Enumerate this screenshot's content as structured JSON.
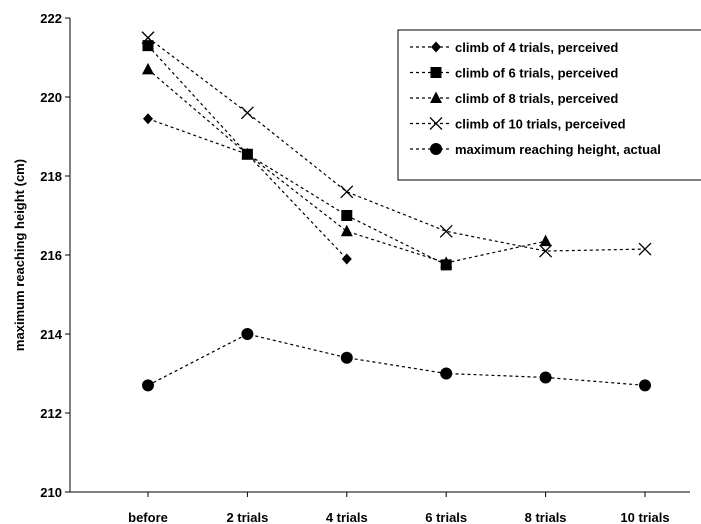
{
  "chart_data": {
    "type": "line",
    "title": "",
    "xlabel": "",
    "ylabel": "maximum reaching height (cm)",
    "categories": [
      "before",
      "2 trials",
      "4 trials",
      "6 trials",
      "8 trials",
      "10 trials"
    ],
    "ylim": [
      210,
      222
    ],
    "yticks": [
      210,
      212,
      214,
      216,
      218,
      220,
      222
    ],
    "grid": false,
    "legend_position": "top-right",
    "series": [
      {
        "name": "climb of 4 trials, perceived",
        "marker": "diamond",
        "values": [
          219.45,
          218.55,
          215.9,
          null,
          null,
          null
        ]
      },
      {
        "name": "climb of 6 trials, perceived",
        "marker": "square",
        "values": [
          221.3,
          218.55,
          217.0,
          215.75,
          null,
          null
        ]
      },
      {
        "name": "climb of 8 trials, perceived",
        "marker": "triangle",
        "values": [
          220.7,
          218.55,
          216.6,
          215.8,
          216.35,
          null
        ]
      },
      {
        "name": "climb of 10 trials, perceived",
        "marker": "x",
        "values": [
          221.5,
          219.6,
          217.6,
          216.6,
          216.1,
          216.15
        ]
      },
      {
        "name": "maximum reaching height, actual",
        "marker": "circle",
        "values": [
          212.7,
          214.0,
          213.4,
          213.0,
          212.9,
          212.7
        ]
      }
    ]
  }
}
